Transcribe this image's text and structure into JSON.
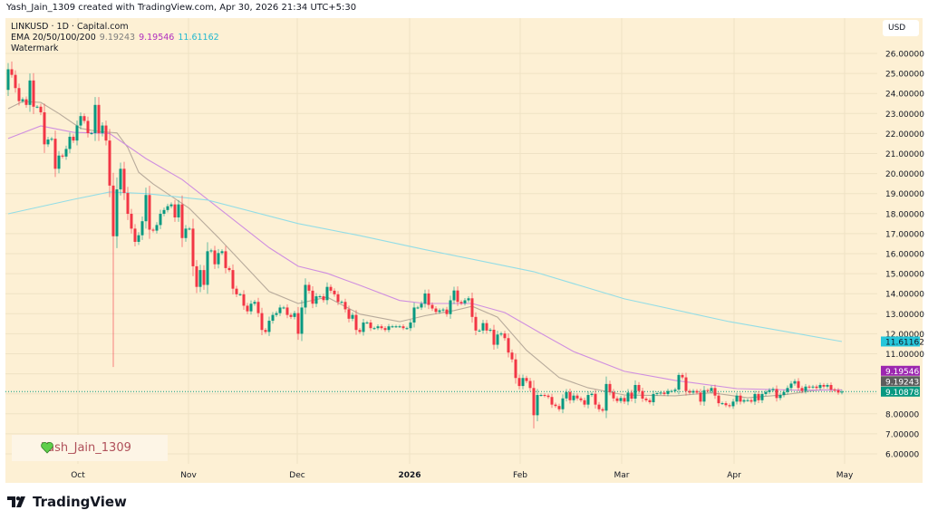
{
  "credit": "Yash_Jain_1309 created with TradingView.com, Apr 30, 2026 21:34 UTC+5:30",
  "legend": {
    "symbol_line": "LINKUSD · 1D · Capital.com",
    "ema_label": "EMA 20/50/100/200",
    "ema_values": [
      "9.19243",
      "9.19546",
      "11.61162"
    ],
    "watermark_label": "Watermark"
  },
  "currency": "USD",
  "watermark_text": "Yash_Jain_1309",
  "brand": "TradingView",
  "colors": {
    "background": "#fdf0d4",
    "up": "#089981",
    "down": "#f23645",
    "ema_short": "#b8ab9c",
    "ema_mid": "#cf8ee0",
    "ema_long": "#93dde6",
    "last_price": "#089981",
    "ema_mid_tag": "#9c27b0",
    "ema_short_tag": "#5d5d5d",
    "ema_long_tag": "#26c6da"
  },
  "chart_data": {
    "type": "candlestick",
    "title": "LINKUSD · 1D · Capital.com",
    "x_tick_labels": [
      "Oct",
      "Nov",
      "Dec",
      "2026",
      "Feb",
      "Mar",
      "Apr",
      "May"
    ],
    "y_ticks": [
      6,
      7,
      8,
      11,
      12,
      13,
      14,
      15,
      16,
      17,
      18,
      19,
      20,
      21,
      22,
      23,
      24,
      25,
      26
    ],
    "y_tick_labels": [
      "6.00000",
      "7.00000",
      "8.00000",
      "11.00000",
      "12.00000",
      "13.00000",
      "14.00000",
      "15.00000",
      "16.00000",
      "17.00000",
      "18.00000",
      "19.00000",
      "20.00000",
      "21.00000",
      "22.00000",
      "23.00000",
      "24.00000",
      "25.00000",
      "26.00000"
    ],
    "ylim": [
      5.4,
      27.3
    ],
    "grid": true,
    "first_open": 24.18,
    "close": [
      25.21,
      24.93,
      24.27,
      23.62,
      23.71,
      23.43,
      24.65,
      23.34,
      23.34,
      23.06,
      21.46,
      21.7,
      21.74,
      20.24,
      20.9,
      20.85,
      21.23,
      21.84,
      21.65,
      22.4,
      22.87,
      22.63,
      22.02,
      22.02,
      23.43,
      22.02,
      22.4,
      21.65,
      19.4,
      16.87,
      19.21,
      20.24,
      19.03,
      17.99,
      17.25,
      16.59,
      16.92,
      17.62,
      18.93,
      17.2,
      17.15,
      17.43,
      17.99,
      18.18,
      18.37,
      18.46,
      17.81,
      18.46,
      16.78,
      17.25,
      17.25,
      15.37,
      14.34,
      15.18,
      14.44,
      16.12,
      16.16,
      15.47,
      16.03,
      16.12,
      15.28,
      15.18,
      14.25,
      13.97,
      13.97,
      13.4,
      13.12,
      13.5,
      13.59,
      13.03,
      12.19,
      12.09,
      12.65,
      12.94,
      13.03,
      13.31,
      13.31,
      12.94,
      12.84,
      13.03,
      12.0,
      13.31,
      14.44,
      14.15,
      13.5,
      13.87,
      13.87,
      13.68,
      14.34,
      14.15,
      13.97,
      13.59,
      13.59,
      13.22,
      12.75,
      12.94,
      12.19,
      12.09,
      12.56,
      12.56,
      12.28,
      12.28,
      12.37,
      12.28,
      12.19,
      12.37,
      12.37,
      12.37,
      12.37,
      12.28,
      12.28,
      12.56,
      13.31,
      13.31,
      13.5,
      14.01,
      13.44,
      13.26,
      13.09,
      13.17,
      13.21,
      12.98,
      13.67,
      14.16,
      13.59,
      13.52,
      13.67,
      13.77,
      12.84,
      12.16,
      12.16,
      12.53,
      12.16,
      12.2,
      11.45,
      11.96,
      12.01,
      11.78,
      11.06,
      10.72,
      9.79,
      9.39,
      9.79,
      9.64,
      9.29,
      7.93,
      8.94,
      8.94,
      8.91,
      8.84,
      8.46,
      8.39,
      8.23,
      8.77,
      9.09,
      8.68,
      8.91,
      8.77,
      8.68,
      8.46,
      8.94,
      9.0,
      8.46,
      8.23,
      8.16,
      9.49,
      9.09,
      8.77,
      8.64,
      8.79,
      8.61,
      9.06,
      8.76,
      9.44,
      9.14,
      8.76,
      8.68,
      8.58,
      8.99,
      9.03,
      9.06,
      8.99,
      9.14,
      9.14,
      9.21,
      9.94,
      9.82,
      9.14,
      9.06,
      9.14,
      9.06,
      8.61,
      9.18,
      9.14,
      9.29,
      8.91,
      8.53,
      8.53,
      8.43,
      8.38,
      8.61,
      8.91,
      8.61,
      8.68,
      8.68,
      8.61,
      8.99,
      8.68,
      8.99,
      9.09,
      9.18,
      9.24,
      8.79,
      8.94,
      9.09,
      9.29,
      9.51,
      9.63,
      9.29,
      9.14,
      9.36,
      9.33,
      9.36,
      9.29,
      9.44,
      9.36,
      9.44,
      9.21,
      9.18,
      9.06,
      9.11
    ],
    "wick_extremes": [
      {
        "bar": 2,
        "high": 25.6
      },
      {
        "bar": 30,
        "low": 10.34
      },
      {
        "bar": 146,
        "low": 7.27
      },
      {
        "bar": 186,
        "high": 10.05
      }
    ],
    "last_price": "9.10878",
    "series": [
      {
        "name": "EMA 20",
        "value_label": "9.19243",
        "points": [
          [
            1,
            23.24
          ],
          [
            5,
            23.6
          ],
          [
            10,
            23.55
          ],
          [
            15,
            23.0
          ],
          [
            21,
            22.26
          ],
          [
            26,
            22.1
          ],
          [
            31,
            22.03
          ],
          [
            34,
            21.3
          ],
          [
            37,
            20.07
          ],
          [
            41,
            19.48
          ],
          [
            51,
            18.26
          ],
          [
            59,
            16.8
          ],
          [
            73,
            14.11
          ],
          [
            81,
            13.51
          ],
          [
            89,
            13.83
          ],
          [
            98,
            12.98
          ],
          [
            109,
            12.6
          ],
          [
            116,
            12.9
          ],
          [
            124,
            13.16
          ],
          [
            129,
            13.37
          ],
          [
            136,
            12.83
          ],
          [
            144,
            11.17
          ],
          [
            153,
            9.81
          ],
          [
            161,
            9.3
          ],
          [
            171,
            8.94
          ],
          [
            185,
            8.9
          ],
          [
            195,
            9.05
          ],
          [
            205,
            8.8
          ],
          [
            215,
            8.95
          ],
          [
            225,
            9.2
          ],
          [
            231,
            9.19243
          ]
        ]
      },
      {
        "name": "EMA 50",
        "value_label": "9.19546",
        "points": [
          [
            1,
            21.75
          ],
          [
            10,
            22.38
          ],
          [
            19,
            22.06
          ],
          [
            29,
            22.0
          ],
          [
            39,
            20.75
          ],
          [
            49,
            19.7
          ],
          [
            56,
            18.71
          ],
          [
            73,
            16.3
          ],
          [
            81,
            15.37
          ],
          [
            89,
            15.02
          ],
          [
            98,
            14.42
          ],
          [
            109,
            13.66
          ],
          [
            116,
            13.51
          ],
          [
            129,
            13.51
          ],
          [
            138,
            13.06
          ],
          [
            148,
            12.02
          ],
          [
            157,
            11.11
          ],
          [
            171,
            10.12
          ],
          [
            185,
            9.67
          ],
          [
            202,
            9.26
          ],
          [
            219,
            9.18
          ],
          [
            231,
            9.19546
          ]
        ]
      },
      {
        "name": "EMA 200",
        "value_label": "11.61162",
        "points": [
          [
            1,
            17.99
          ],
          [
            19,
            18.71
          ],
          [
            29,
            19.08
          ],
          [
            39,
            19.0
          ],
          [
            56,
            18.68
          ],
          [
            81,
            17.5
          ],
          [
            98,
            16.9
          ],
          [
            116,
            16.2
          ],
          [
            146,
            15.1
          ],
          [
            171,
            13.74
          ],
          [
            200,
            12.6
          ],
          [
            231,
            11.61162
          ]
        ]
      }
    ]
  }
}
